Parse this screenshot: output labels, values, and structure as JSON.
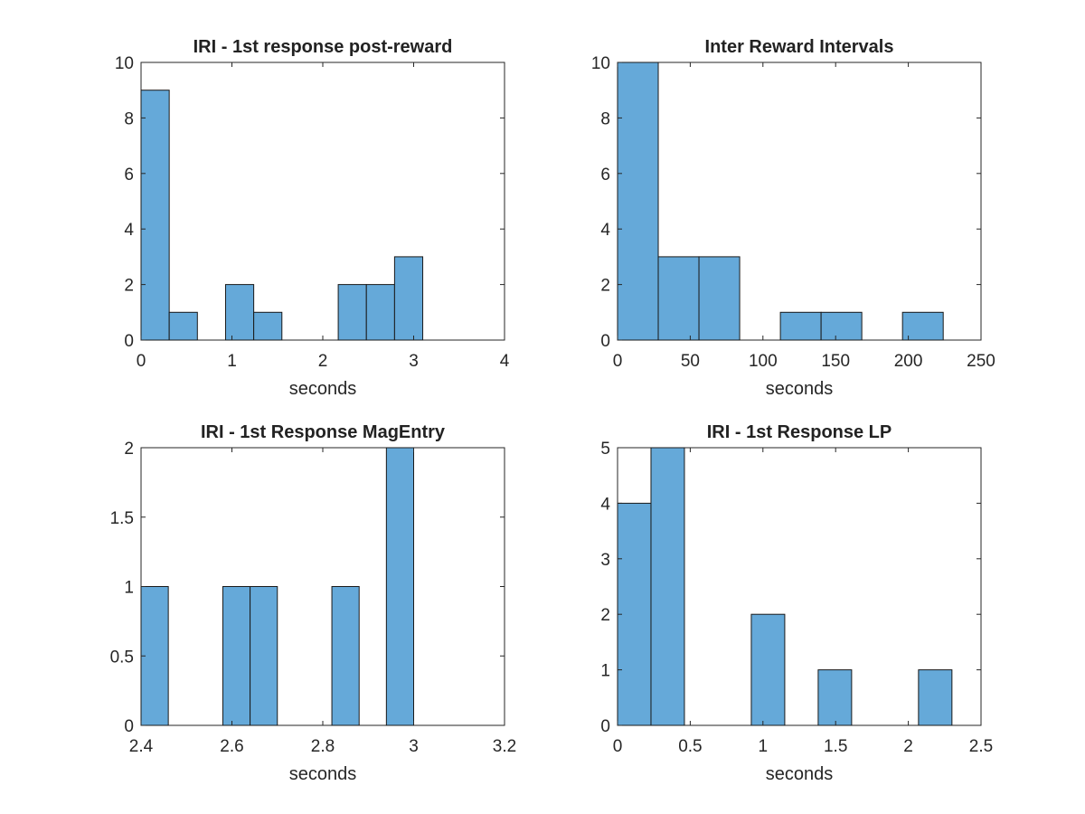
{
  "colors": {
    "bar_fill": "#65a9d9",
    "bar_edge": "#1a1a1a",
    "axes": "#262626",
    "background": "#ffffff"
  },
  "chart_data": [
    {
      "type": "bar",
      "title": "IRI - 1st response post-reward",
      "xlabel": "seconds",
      "ylabel": "",
      "xlim": [
        0,
        4
      ],
      "ylim": [
        0,
        10
      ],
      "xticks": [
        0,
        1,
        2,
        3,
        4
      ],
      "yticks": [
        0,
        2,
        4,
        6,
        8,
        10
      ],
      "bin_edges": [
        0,
        0.31,
        0.62,
        0.93,
        1.24,
        1.55,
        1.86,
        2.17,
        2.48,
        2.79,
        3.1
      ],
      "values": [
        9,
        1,
        0,
        2,
        1,
        0,
        0,
        2,
        2,
        3
      ],
      "grid": false
    },
    {
      "type": "bar",
      "title": "Inter Reward Intervals",
      "xlabel": "seconds",
      "ylabel": "",
      "xlim": [
        0,
        250
      ],
      "ylim": [
        0,
        10
      ],
      "xticks": [
        0,
        50,
        100,
        150,
        200,
        250
      ],
      "yticks": [
        0,
        2,
        4,
        6,
        8,
        10
      ],
      "bin_edges": [
        0,
        28,
        56,
        84,
        112,
        140,
        168,
        196,
        224
      ],
      "values": [
        10,
        3,
        3,
        0,
        1,
        1,
        0,
        1
      ],
      "grid": false
    },
    {
      "type": "bar",
      "title": "IRI - 1st Response MagEntry",
      "xlabel": "seconds",
      "ylabel": "",
      "xlim": [
        2.4,
        3.2
      ],
      "ylim": [
        0,
        2
      ],
      "xticks": [
        2.4,
        2.6,
        2.8,
        3,
        3.2
      ],
      "ytick_labels": [
        "0",
        "0.5",
        "1",
        "1.5",
        "2"
      ],
      "yticks": [
        0,
        0.5,
        1,
        1.5,
        2
      ],
      "xtick_labels": [
        "2.4",
        "2.6",
        "2.8",
        "3",
        "3.2"
      ],
      "bin_edges": [
        2.4,
        2.46,
        2.52,
        2.58,
        2.64,
        2.7,
        2.76,
        2.82,
        2.88,
        2.94,
        3.0
      ],
      "values": [
        1,
        0,
        0,
        1,
        1,
        0,
        0,
        1,
        0,
        2
      ],
      "grid": false
    },
    {
      "type": "bar",
      "title": "IRI - 1st Response LP",
      "xlabel": "seconds",
      "ylabel": "",
      "xlim": [
        0,
        2.5
      ],
      "ylim": [
        0,
        5
      ],
      "xticks": [
        0,
        0.5,
        1,
        1.5,
        2,
        2.5
      ],
      "yticks": [
        0,
        1,
        2,
        3,
        4,
        5
      ],
      "bin_edges": [
        0,
        0.23,
        0.46,
        0.69,
        0.92,
        1.15,
        1.38,
        1.61,
        1.84,
        2.07,
        2.3
      ],
      "values": [
        4,
        5,
        0,
        0,
        2,
        0,
        1,
        0,
        0,
        1
      ],
      "grid": false
    }
  ]
}
